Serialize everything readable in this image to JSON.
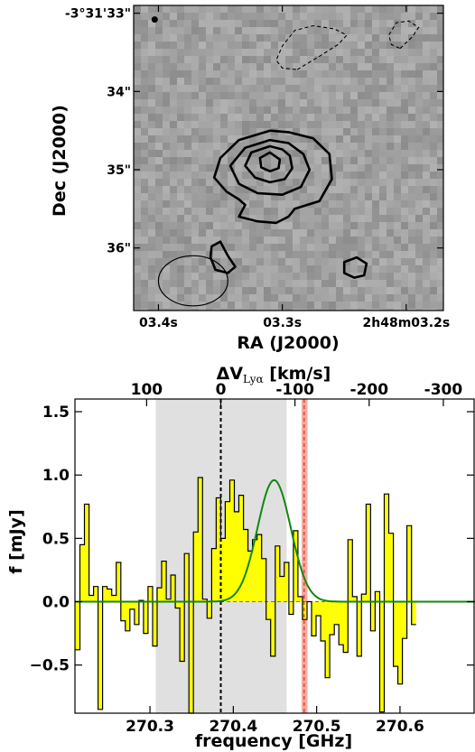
{
  "chart_data": [
    {
      "type": "heatmap",
      "xlabel": "RA (J2000)",
      "ylabel": "Dec (J2000)",
      "x_tick_labels": [
        "03.4s",
        "03.3s",
        "2h48m03.2s"
      ],
      "y_tick_labels": [
        "-3°31'33\"",
        "34\"",
        "35\"",
        "36\""
      ],
      "ra_ticks_s": [
        3.4,
        3.3,
        3.2
      ],
      "dec_ticks_arcsec": [
        33,
        34,
        35,
        36
      ],
      "ra_range_s": [
        3.42,
        3.17
      ],
      "dec_range_arcsec": [
        32.9,
        36.8
      ],
      "colors": {
        "background": "#9e9e9e",
        "contour": "#000000"
      },
      "contours": {
        "solid": [
          [
            [
              3.31,
              34.5
            ],
            [
              3.335,
              34.62
            ],
            [
              3.35,
              34.85
            ],
            [
              3.355,
              35.1
            ],
            [
              3.345,
              35.28
            ],
            [
              3.335,
              35.38
            ],
            [
              3.33,
              35.45
            ],
            [
              3.335,
              35.6
            ],
            [
              3.32,
              35.66
            ],
            [
              3.305,
              35.68
            ],
            [
              3.295,
              35.6
            ],
            [
              3.29,
              35.5
            ],
            [
              3.27,
              35.4
            ],
            [
              3.26,
              35.12
            ],
            [
              3.262,
              34.8
            ],
            [
              3.275,
              34.6
            ],
            [
              3.295,
              34.52
            ]
          ],
          [
            [
              3.31,
              34.62
            ],
            [
              3.33,
              34.72
            ],
            [
              3.342,
              34.95
            ],
            [
              3.335,
              35.18
            ],
            [
              3.32,
              35.3
            ],
            [
              3.3,
              35.32
            ],
            [
              3.285,
              35.22
            ],
            [
              3.278,
              35.0
            ],
            [
              3.283,
              34.8
            ],
            [
              3.295,
              34.66
            ]
          ],
          [
            [
              3.31,
              34.7
            ],
            [
              3.325,
              34.78
            ],
            [
              3.33,
              34.95
            ],
            [
              3.322,
              35.1
            ],
            [
              3.31,
              35.16
            ],
            [
              3.298,
              35.12
            ],
            [
              3.292,
              34.98
            ],
            [
              3.294,
              34.82
            ],
            [
              3.3,
              34.74
            ]
          ],
          [
            [
              3.31,
              34.78
            ],
            [
              3.318,
              34.85
            ],
            [
              3.317,
              34.97
            ],
            [
              3.31,
              35.02
            ],
            [
              3.303,
              34.98
            ],
            [
              3.302,
              34.87
            ]
          ],
          [
            [
              3.35,
              35.92
            ],
            [
              3.344,
              36.1
            ],
            [
              3.338,
              36.24
            ],
            [
              3.344,
              36.32
            ],
            [
              3.354,
              36.28
            ],
            [
              3.358,
              36.12
            ],
            [
              3.357,
              35.98
            ]
          ],
          [
            [
              3.24,
              36.12
            ],
            [
              3.232,
              36.2
            ],
            [
              3.234,
              36.35
            ],
            [
              3.242,
              36.38
            ],
            [
              3.25,
              36.32
            ],
            [
              3.25,
              36.18
            ]
          ]
        ],
        "dashed": [
          [
            [
              3.288,
              33.72
            ],
            [
              3.27,
              33.55
            ],
            [
              3.255,
              33.4
            ],
            [
              3.248,
              33.28
            ],
            [
              3.258,
              33.2
            ],
            [
              3.275,
              33.16
            ],
            [
              3.29,
              33.22
            ],
            [
              3.3,
              33.42
            ],
            [
              3.305,
              33.6
            ],
            [
              3.3,
              33.7
            ]
          ],
          [
            [
              3.205,
              33.45
            ],
            [
              3.195,
              33.3
            ],
            [
              3.19,
              33.18
            ],
            [
              3.198,
              33.1
            ],
            [
              3.208,
              33.12
            ],
            [
              3.214,
              33.28
            ],
            [
              3.212,
              33.4
            ]
          ]
        ],
        "filled_dot": [
          3.403,
          33.08
        ]
      },
      "beam": {
        "center": [
          3.372,
          36.42
        ],
        "ra_halfwidth_s": 0.028,
        "dec_halfheight_arcsec": 0.32
      }
    },
    {
      "type": "bar",
      "xlabel": "frequency [GHz]",
      "ylabel": "f [mJy]",
      "top_axis_label": "ΔV",
      "top_axis_label_subscript": "Lyα",
      "top_axis_label_unit": " [km/s]",
      "xlim": [
        270.21,
        270.69
      ],
      "ylim": [
        -0.88,
        1.6
      ],
      "x_ticks": [
        270.3,
        270.4,
        270.5,
        270.6
      ],
      "x_tick_labels": [
        "270.3",
        "270.4",
        "270.5",
        "270.6"
      ],
      "y_ticks": [
        -0.5,
        0.0,
        0.5,
        1.0,
        1.5
      ],
      "y_tick_labels": [
        "−0.5",
        "0.0",
        "0.5",
        "1.0",
        "1.5"
      ],
      "top_ticks_kms": [
        100,
        0,
        -100,
        -200,
        -300
      ],
      "top_tick_labels": [
        "100",
        "0",
        "-100",
        "-200",
        "-300"
      ],
      "top_tick_freq": [
        270.296,
        270.385,
        270.474,
        270.563,
        270.652
      ],
      "shaded_region_ghz": [
        270.307,
        270.464
      ],
      "red_band_ghz": [
        270.482,
        270.489
      ],
      "red_line_ghz": 270.485,
      "zero_velocity_line_ghz": 270.385,
      "bin_edges_start_ghz": 270.2105,
      "bin_width_ghz": 0.00545,
      "values": [
        -0.38,
        0.45,
        0.77,
        0.05,
        0.12,
        -0.85,
        0.12,
        0.1,
        0.05,
        0.31,
        -0.15,
        -0.23,
        -0.06,
        -0.18,
        0.01,
        -0.25,
        0.12,
        -0.35,
        0.11,
        0.32,
        0.02,
        0.21,
        -0.05,
        -0.47,
        0.38,
        -0.99,
        0.55,
        0.98,
        0.02,
        -0.13,
        0.42,
        0.82,
        0.5,
        0.79,
        0.96,
        0.71,
        0.84,
        0.57,
        0.4,
        0.49,
        0.53,
        0.34,
        -0.14,
        -0.43,
        0.44,
        0.2,
        0.31,
        -0.1,
        0.56,
        0.04,
        -0.14,
        0.0,
        -0.27,
        -0.11,
        -0.31,
        -0.6,
        -0.26,
        -0.18,
        -0.34,
        -0.4,
        0.49,
        0.04,
        -0.43,
        0.06,
        0.77,
        -0.23,
        0.08,
        -0.87,
        0.85,
        0.54,
        -0.51,
        -0.65,
        -0.29,
        0.6,
        -0.18
      ],
      "gaussian_fit": {
        "amplitude_mjy": 0.96,
        "center_ghz": 270.449,
        "sigma_ghz": 0.02
      },
      "colors": {
        "bars": "#ffff00",
        "shade": "#e0e0e0",
        "red": "#e03020",
        "band": "#f5aaa0",
        "fit": "#118811"
      }
    }
  ]
}
